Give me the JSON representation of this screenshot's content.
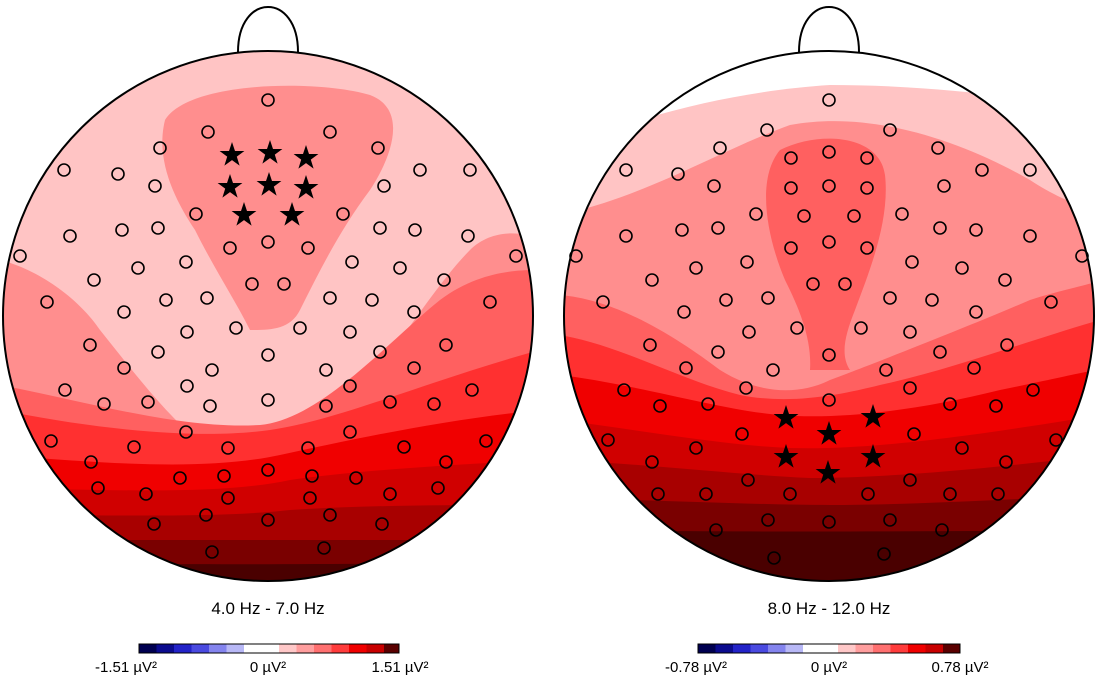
{
  "panels": [
    {
      "title": "4.0 Hz - 7.0 Hz",
      "colorbar": {
        "min_label": "-1.51 µV²",
        "zero_label": "0 µV²",
        "max_label": "1.51 µV²"
      },
      "significant_electrodes": 8
    },
    {
      "title": "8.0 Hz - 12.0 Hz",
      "colorbar": {
        "min_label": "-0.78 µV²",
        "zero_label": "0 µV²",
        "max_label": "0.78 µV²"
      },
      "significant_electrodes": 6
    }
  ],
  "colors": {
    "outline": "#000000",
    "scale": [
      "#000050",
      "#0b0b8e",
      "#2323c8",
      "#4a4ae0",
      "#8484ee",
      "#b8b8f6",
      "#ffffff",
      "#ffc8c8",
      "#ff9e9e",
      "#ff7070",
      "#ff3c3c",
      "#f00000",
      "#c80000",
      "#960000",
      "#5a0000"
    ]
  }
}
